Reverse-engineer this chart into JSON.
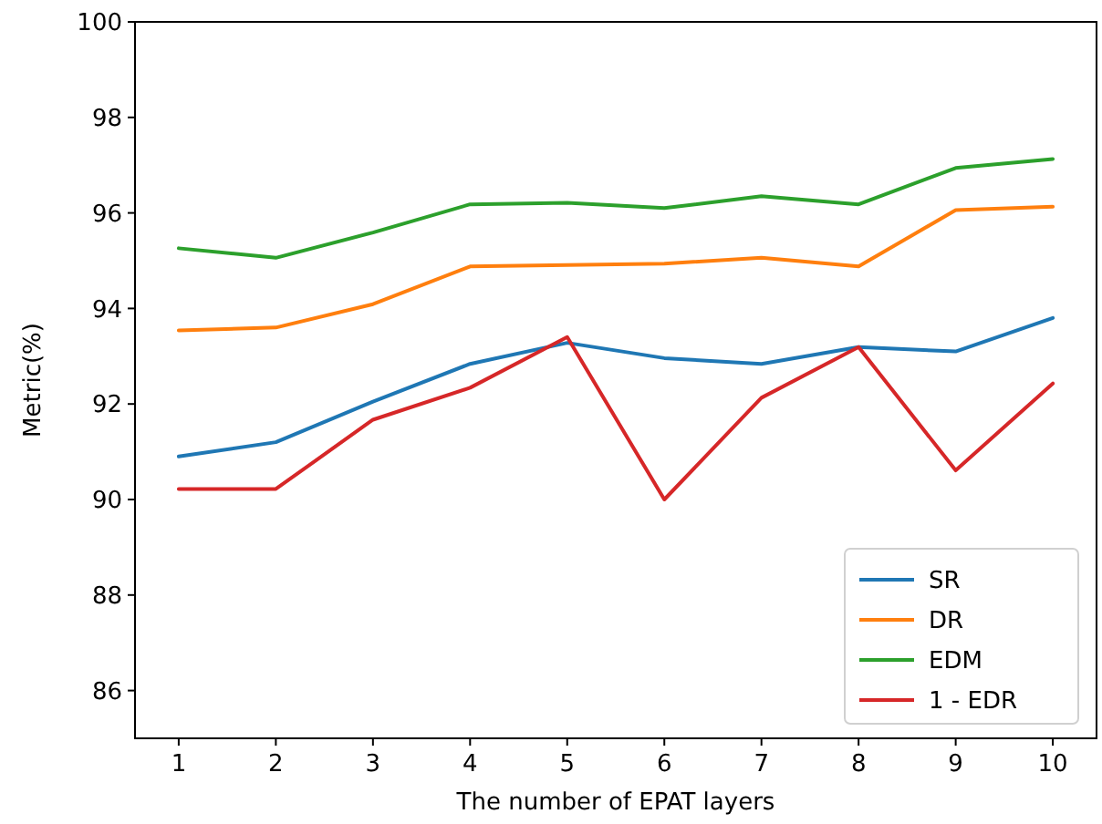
{
  "chart_data": {
    "type": "line",
    "xlabel": "The number of EPAT layers",
    "ylabel": "Metric(%)",
    "x": [
      1,
      2,
      3,
      4,
      5,
      6,
      7,
      8,
      9,
      10
    ],
    "xlim": [
      0.55,
      10.45
    ],
    "xticks": [
      1,
      2,
      3,
      4,
      5,
      6,
      7,
      8,
      9,
      10
    ],
    "ylim": [
      85,
      100
    ],
    "yticks": [
      86,
      88,
      90,
      92,
      94,
      96,
      98,
      100
    ],
    "grid": false,
    "legend": "bottom right",
    "marker": "none",
    "line_style": "solid",
    "series": [
      {
        "name": "SR",
        "color": "#1f77b4",
        "values": [
          90.9,
          91.2,
          92.05,
          92.84,
          93.28,
          92.96,
          92.84,
          93.19,
          93.1,
          93.8
        ]
      },
      {
        "name": "DR",
        "color": "#ff7f0e",
        "values": [
          93.54,
          93.6,
          94.09,
          94.88,
          94.91,
          94.94,
          95.06,
          94.88,
          96.06,
          96.13
        ]
      },
      {
        "name": "EDM",
        "color": "#2ca02c",
        "values": [
          95.26,
          95.06,
          95.59,
          96.18,
          96.21,
          96.1,
          96.35,
          96.18,
          96.94,
          97.13
        ]
      },
      {
        "name": "1 - EDR",
        "color": "#d62728",
        "values": [
          90.22,
          90.22,
          91.67,
          92.34,
          93.4,
          90.0,
          92.13,
          93.19,
          90.61,
          92.43
        ]
      }
    ]
  }
}
